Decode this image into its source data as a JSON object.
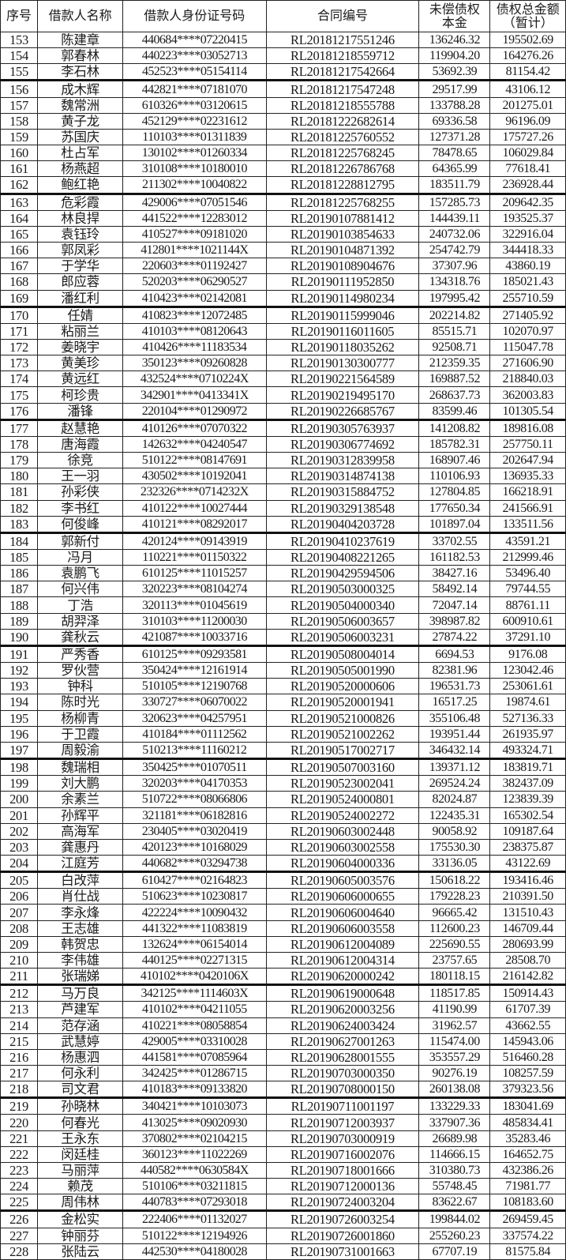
{
  "header": {
    "seq": "序号",
    "name": "借款人名称",
    "id_number": "借款人身份证号码",
    "contract_no": "合同编号",
    "principal_line1": "未偿债权",
    "principal_line2": "本金",
    "total_line1": "债权总金额",
    "total_line2": "（暂计）"
  },
  "rows": [
    [
      "153",
      "陈建章",
      "440684****07220415",
      "RL20181217551246",
      "136246.32",
      "195502.69"
    ],
    [
      "154",
      "郭春林",
      "440223****03052713",
      "RL20181218559712",
      "119904.20",
      "164276.26"
    ],
    [
      "155",
      "李石林",
      "452523****05154114",
      "RL20181217542664",
      "53692.39",
      "81154.42"
    ],
    [
      "156",
      "成木辉",
      "442821****07181070",
      "RL20181217547248",
      "29517.99",
      "43106.12"
    ],
    [
      "157",
      "魏常洲",
      "610326****03120615",
      "RL20181218555788",
      "133788.28",
      "201275.01"
    ],
    [
      "158",
      "黄子龙",
      "452129****02231612",
      "RL20181222682614",
      "69336.58",
      "96196.09"
    ],
    [
      "159",
      "苏国庆",
      "110103****01311839",
      "RL20181225760552",
      "127371.28",
      "175727.26"
    ],
    [
      "160",
      "杜占军",
      "130102****01260334",
      "RL20181225768245",
      "78478.65",
      "106029.84"
    ],
    [
      "161",
      "杨燕超",
      "310108****10180010",
      "RL20181226786768",
      "64365.99",
      "77618.41"
    ],
    [
      "162",
      "鲍红艳",
      "211302****10040822",
      "RL20181228812795",
      "183511.79",
      "236928.44"
    ],
    [
      "163",
      "危彩霞",
      "429006****07051546",
      "RL20181225768255",
      "157285.73",
      "209642.35"
    ],
    [
      "164",
      "林良捍",
      "441522****12283012",
      "RL20190107881412",
      "144439.11",
      "193525.37"
    ],
    [
      "165",
      "袁钰玲",
      "410527****09181020",
      "RL20190103854633",
      "240732.06",
      "322916.04"
    ],
    [
      "166",
      "郭凤彩",
      "412801****1021144X",
      "RL20190104871392",
      "254742.79",
      "344418.33"
    ],
    [
      "167",
      "于学华",
      "220603****01192427",
      "RL20190108904676",
      "37307.96",
      "43860.19"
    ],
    [
      "168",
      "郎应蓉",
      "520203****06290527",
      "RL20190111952850",
      "134318.76",
      "185021.43"
    ],
    [
      "169",
      "潘红利",
      "410423****02142081",
      "RL20190114980234",
      "197995.42",
      "255710.59"
    ],
    [
      "170",
      "任婧",
      "410823****12072485",
      "RL20190115999046",
      "202214.82",
      "271405.92"
    ],
    [
      "171",
      "粘丽兰",
      "410103****08120643",
      "RL20190116011605",
      "85515.71",
      "102070.97"
    ],
    [
      "172",
      "姜晓宇",
      "410426****11183534",
      "RL20190118035262",
      "92508.71",
      "115047.78"
    ],
    [
      "173",
      "黄美珍",
      "350123****09260828",
      "RL20190130300777",
      "212359.35",
      "271606.90"
    ],
    [
      "174",
      "黄远红",
      "432524****0710224X",
      "RL20190221564589",
      "169887.52",
      "218840.03"
    ],
    [
      "175",
      "柯珍贵",
      "342901****0413341X",
      "RL20190219495170",
      "268637.73",
      "362003.83"
    ],
    [
      "176",
      "潘锋",
      "220104****01290972",
      "RL20190226685767",
      "83599.46",
      "101305.54"
    ],
    [
      "177",
      "赵慧艳",
      "410126****07070322",
      "RL20190305763937",
      "141208.82",
      "189816.08"
    ],
    [
      "178",
      "唐海霞",
      "142632****04240547",
      "RL20190306774692",
      "185782.31",
      "257750.11"
    ],
    [
      "179",
      "徐竞",
      "510122****08147691",
      "RL20190312839958",
      "168907.46",
      "202647.94"
    ],
    [
      "180",
      "王一羽",
      "430502****10192041",
      "RL20190314874138",
      "110106.93",
      "136935.33"
    ],
    [
      "181",
      "孙彩侠",
      "232326****0714232X",
      "RL20190315884752",
      "127804.85",
      "166218.91"
    ],
    [
      "182",
      "李书红",
      "410122****10027444",
      "RL20190329138548",
      "177650.34",
      "241566.91"
    ],
    [
      "183",
      "何俊峰",
      "410121****08292017",
      "RL20190404203728",
      "101897.04",
      "133511.56"
    ],
    [
      "184",
      "郭新付",
      "420124****09143919",
      "RL20190410237619",
      "33702.55",
      "43591.21"
    ],
    [
      "185",
      "冯月",
      "110221****01150322",
      "RL20190408221265",
      "161182.53",
      "212999.46"
    ],
    [
      "186",
      "袁鹏飞",
      "610125****11015257",
      "RL20190429594506",
      "38427.16",
      "53496.40"
    ],
    [
      "187",
      "何兴伟",
      "320223****08104274",
      "RL20190503000325",
      "58492.14",
      "79744.55"
    ],
    [
      "188",
      "丁浩",
      "320113****01045619",
      "RL20190504000340",
      "72047.14",
      "88761.11"
    ],
    [
      "189",
      "胡羿泽",
      "310103****11200030",
      "RL20190506003657",
      "398987.82",
      "600910.61"
    ],
    [
      "190",
      "龚秋云",
      "421087****10033716",
      "RL20190506003231",
      "27874.22",
      "37291.10"
    ],
    [
      "191",
      "严秀香",
      "610125****09293581",
      "RL20190508004014",
      "6694.53",
      "9176.08"
    ],
    [
      "192",
      "罗伙营",
      "350424****12161914",
      "RL20190505001990",
      "82381.96",
      "123042.46"
    ],
    [
      "193",
      "钟科",
      "510105****12190768",
      "RL20190520000606",
      "196531.73",
      "253061.61"
    ],
    [
      "194",
      "陈时光",
      "330727****06070022",
      "RL20190520001941",
      "16517.25",
      "19874.61"
    ],
    [
      "195",
      "杨柳青",
      "320623****04257951",
      "RL20190521000826",
      "355106.48",
      "527136.33"
    ],
    [
      "196",
      "于卫霞",
      "410184****01112562",
      "RL20190521002262",
      "193951.44",
      "261935.97"
    ],
    [
      "197",
      "周毅渝",
      "510213****11160212",
      "RL20190517002717",
      "346432.14",
      "493324.71"
    ],
    [
      "198",
      "魏瑞相",
      "350425****01070511",
      "RL20190507003160",
      "139371.12",
      "183819.71"
    ],
    [
      "199",
      "刘大鹏",
      "320203****04170353",
      "RL20190523002041",
      "269524.24",
      "382437.09"
    ],
    [
      "200",
      "余素兰",
      "510722****08066806",
      "RL20190524000801",
      "82024.87",
      "123839.39"
    ],
    [
      "201",
      "孙辉平",
      "321181****06182816",
      "RL20190524002272",
      "122435.31",
      "165302.54"
    ],
    [
      "202",
      "高海军",
      "230405****03020419",
      "RL20190603002448",
      "90058.92",
      "109187.64"
    ],
    [
      "203",
      "龚惠丹",
      "420123****10168029",
      "RL20190603002558",
      "175530.30",
      "238375.87"
    ],
    [
      "204",
      "江庭芳",
      "440682****03294738",
      "RL20190604000336",
      "33136.05",
      "43122.69"
    ],
    [
      "205",
      "白改萍",
      "610427****02164823",
      "RL20190605003576",
      "150618.22",
      "193416.46"
    ],
    [
      "206",
      "肖仕战",
      "510623****10230817",
      "RL20190606000655",
      "179228.23",
      "210391.50"
    ],
    [
      "207",
      "李永烽",
      "422224****10090432",
      "RL20190606004640",
      "96665.42",
      "131510.43"
    ],
    [
      "208",
      "王志雄",
      "441322****11083819",
      "RL20190606003558",
      "112600.23",
      "146709.44"
    ],
    [
      "209",
      "韩贺忠",
      "132624****06154014",
      "RL20190612004089",
      "225690.55",
      "280693.99"
    ],
    [
      "210",
      "李伟雄",
      "440125****02271315",
      "RL20190612004314",
      "23757.65",
      "28508.70"
    ],
    [
      "211",
      "张瑞娣",
      "410102****0420106X",
      "RL20190620000242",
      "180118.15",
      "216142.82"
    ],
    [
      "212",
      "马万良",
      "342125****1114603X",
      "RL20190619000648",
      "118517.85",
      "150914.43"
    ],
    [
      "213",
      "芦建军",
      "410102****04211055",
      "RL20190620003256",
      "41190.99",
      "61707.39"
    ],
    [
      "214",
      "范存涵",
      "410221****08058854",
      "RL20190624003424",
      "31962.57",
      "43662.55"
    ],
    [
      "215",
      "武慧婷",
      "429005****03310028",
      "RL20190627001263",
      "115474.00",
      "145943.06"
    ],
    [
      "216",
      "杨惠泗",
      "441581****07085964",
      "RL20190628001555",
      "353557.29",
      "516460.28"
    ],
    [
      "217",
      "何永利",
      "342425****01286715",
      "RL20190703000350",
      "90276.19",
      "108257.59"
    ],
    [
      "218",
      "司文君",
      "410183****09133820",
      "RL20190708000150",
      "260138.08",
      "379323.56"
    ],
    [
      "219",
      "孙晓林",
      "340421****10103073",
      "RL20190711001197",
      "133229.33",
      "183041.69"
    ],
    [
      "220",
      "何春光",
      "413025****09020930",
      "RL20190712003937",
      "337907.36",
      "485834.41"
    ],
    [
      "221",
      "王永东",
      "370802****02104215",
      "RL20190703000919",
      "26689.98",
      "35283.46"
    ],
    [
      "222",
      "闵廷桂",
      "360123****11022269",
      "RL20190716002076",
      "114666.15",
      "164652.75"
    ],
    [
      "223",
      "马丽萍",
      "440582****0630584X",
      "RL20190718001666",
      "310380.73",
      "432386.26"
    ],
    [
      "224",
      "赖茂",
      "510106****03211815",
      "RL20190712000136",
      "55748.45",
      "71981.77"
    ],
    [
      "225",
      "周伟林",
      "440783****07293018",
      "RL20190724003204",
      "83622.67",
      "108183.60"
    ],
    [
      "226",
      "金松实",
      "222406****01132027",
      "RL20190726003254",
      "199844.02",
      "269459.45"
    ],
    [
      "227",
      "钟丽芬",
      "510122****12194926",
      "RL20190726001860",
      "255260.23",
      "337574.22"
    ],
    [
      "228",
      "张陆云",
      "442530****04180028",
      "RL20190731001663",
      "67707.19",
      "81575.84"
    ]
  ]
}
